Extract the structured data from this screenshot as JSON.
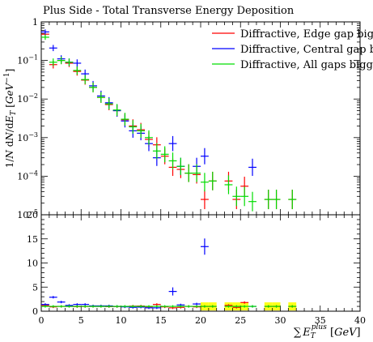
{
  "chart_data": [
    {
      "type": "line",
      "panel": "main",
      "title": "Plus Side - Total Transverse Energy Deposition",
      "ylabel": "1/N dN/dE_T [GeV^-1]",
      "yscale": "log",
      "ylim": [
        1e-05,
        1
      ],
      "xlim": [
        0,
        40
      ],
      "y_tick_labels": [
        "1",
        "10^-1",
        "10^-2",
        "10^-3",
        "10^-4",
        "10^-5"
      ],
      "legend_position": "top-right",
      "series": [
        {
          "name": "Diffractive, Edge gap bigg",
          "color": "#ff0000",
          "x": [
            0.5,
            1.5,
            2.5,
            3.5,
            4.5,
            5.5,
            6.5,
            7.5,
            8.5,
            9.5,
            10.5,
            11.5,
            12.5,
            13.5,
            14.5,
            15.5,
            16.5,
            17.5,
            18.5,
            19.5,
            20.5,
            21.5,
            23.5,
            24.5,
            25.5,
            28.5,
            29.5,
            31.5
          ],
          "y": [
            0.48,
            0.078,
            0.1,
            0.085,
            0.052,
            0.031,
            0.02,
            0.011,
            0.0072,
            0.005,
            0.0029,
            0.002,
            0.0016,
            0.0009,
            0.00065,
            0.00033,
            0.00017,
            0.00015,
            0.00012,
            0.00011,
            2.5e-05,
            7.5e-05,
            7.5e-05,
            2.5e-05,
            5.5e-05,
            2.5e-05,
            2.5e-05,
            2.5e-05
          ]
        },
        {
          "name": "Diffractive, Central gap bi",
          "color": "#0000ff",
          "x": [
            0.5,
            1.5,
            2.5,
            3.5,
            4.5,
            5.5,
            6.5,
            7.5,
            8.5,
            9.5,
            10.5,
            11.5,
            12.5,
            13.5,
            14.5,
            16.5,
            17.5,
            19.5,
            20.5,
            26.5
          ],
          "y": [
            0.55,
            0.21,
            0.11,
            0.09,
            0.085,
            0.045,
            0.022,
            0.012,
            0.008,
            0.005,
            0.0027,
            0.0015,
            0.0013,
            0.0007,
            0.0003,
            0.0007,
            0.00018,
            0.00018,
            0.00033,
            0.00017
          ]
        },
        {
          "name": "Diffractive, All gaps bigge",
          "color": "#00dd00",
          "x": [
            0.5,
            1.5,
            2.5,
            3.5,
            4.5,
            5.5,
            6.5,
            7.5,
            8.5,
            9.5,
            10.5,
            11.5,
            12.5,
            13.5,
            14.5,
            15.5,
            16.5,
            17.5,
            18.5,
            19.5,
            20.5,
            21.5,
            23.5,
            24.5,
            25.5,
            26.5,
            28.5,
            29.5,
            31.5
          ],
          "y": [
            0.4,
            0.09,
            0.1,
            0.09,
            0.055,
            0.032,
            0.02,
            0.011,
            0.0075,
            0.0052,
            0.003,
            0.0019,
            0.0015,
            0.001,
            0.00045,
            0.00037,
            0.00025,
            0.00018,
            0.00012,
            0.00012,
            7e-05,
            7.5e-05,
            6e-05,
            3e-05,
            3e-05,
            2.2e-05,
            2.5e-05,
            2.5e-05,
            2.5e-05
          ]
        }
      ]
    },
    {
      "type": "line",
      "panel": "ratio",
      "xlabel": "ΣE_T^plus [GeV]",
      "xlim": [
        0,
        40
      ],
      "ylim": [
        0,
        20
      ],
      "x_ticks": [
        0,
        5,
        10,
        15,
        20,
        25,
        30,
        35,
        40
      ],
      "y_ticks": [
        0,
        5,
        10,
        15,
        20
      ],
      "band_x": [
        20.5,
        21.5,
        23.5,
        24.5,
        25.5,
        28.5,
        29.5,
        31.5
      ],
      "band_halfwidth": 1.0,
      "series": [
        {
          "name": "Diffractive, Edge gap bigg",
          "color": "#ff0000",
          "x": [
            0.5,
            1.5,
            2.5,
            3.5,
            4.5,
            5.5,
            6.5,
            7.5,
            8.5,
            9.5,
            10.5,
            11.5,
            12.5,
            13.5,
            14.5,
            15.5,
            16.5,
            17.5,
            18.5,
            19.5,
            20.5,
            21.5,
            23.5,
            24.5,
            25.5,
            28.5,
            29.5,
            31.5
          ],
          "y": [
            1.2,
            0.9,
            1.0,
            1.0,
            0.95,
            0.97,
            1.0,
            1.0,
            0.96,
            0.96,
            0.97,
            1.05,
            1.07,
            0.9,
            1.4,
            0.9,
            0.7,
            0.8,
            1.0,
            0.9,
            1.0,
            1.0,
            1.2,
            0.8,
            1.8,
            1.0,
            1.0,
            1.0
          ]
        },
        {
          "name": "Diffractive, Central gap bi",
          "color": "#0000ff",
          "x": [
            0.5,
            1.5,
            2.5,
            3.5,
            4.5,
            5.5,
            6.5,
            7.5,
            8.5,
            9.5,
            10.5,
            11.5,
            12.5,
            13.5,
            14.5,
            16.5,
            17.5,
            19.5,
            20.5,
            26.5
          ],
          "y": [
            1.4,
            2.9,
            1.9,
            1.2,
            1.4,
            1.4,
            1.1,
            1.1,
            1.1,
            1.0,
            0.9,
            0.8,
            0.85,
            0.7,
            0.7,
            4.1,
            1.3,
            1.5,
            13.4,
            1.0
          ]
        },
        {
          "name": "Diffractive, All gaps bigge",
          "color": "#00dd00",
          "x": [
            0.5,
            1.5,
            2.5,
            3.5,
            4.5,
            5.5,
            6.5,
            7.5,
            8.5,
            9.5,
            10.5,
            11.5,
            12.5,
            13.5,
            14.5,
            15.5,
            16.5,
            17.5,
            18.5,
            19.5,
            20.5,
            21.5,
            23.5,
            24.5,
            25.5,
            26.5,
            28.5,
            29.5,
            31.5
          ],
          "y": [
            1.0,
            1.0,
            1.0,
            1.0,
            1.0,
            1.0,
            1.0,
            1.0,
            1.0,
            1.0,
            1.0,
            1.0,
            1.0,
            1.0,
            1.0,
            1.0,
            1.0,
            1.0,
            1.0,
            1.0,
            1.0,
            1.0,
            1.0,
            1.0,
            1.0,
            1.0,
            1.0,
            1.0,
            1.0
          ]
        }
      ]
    }
  ]
}
